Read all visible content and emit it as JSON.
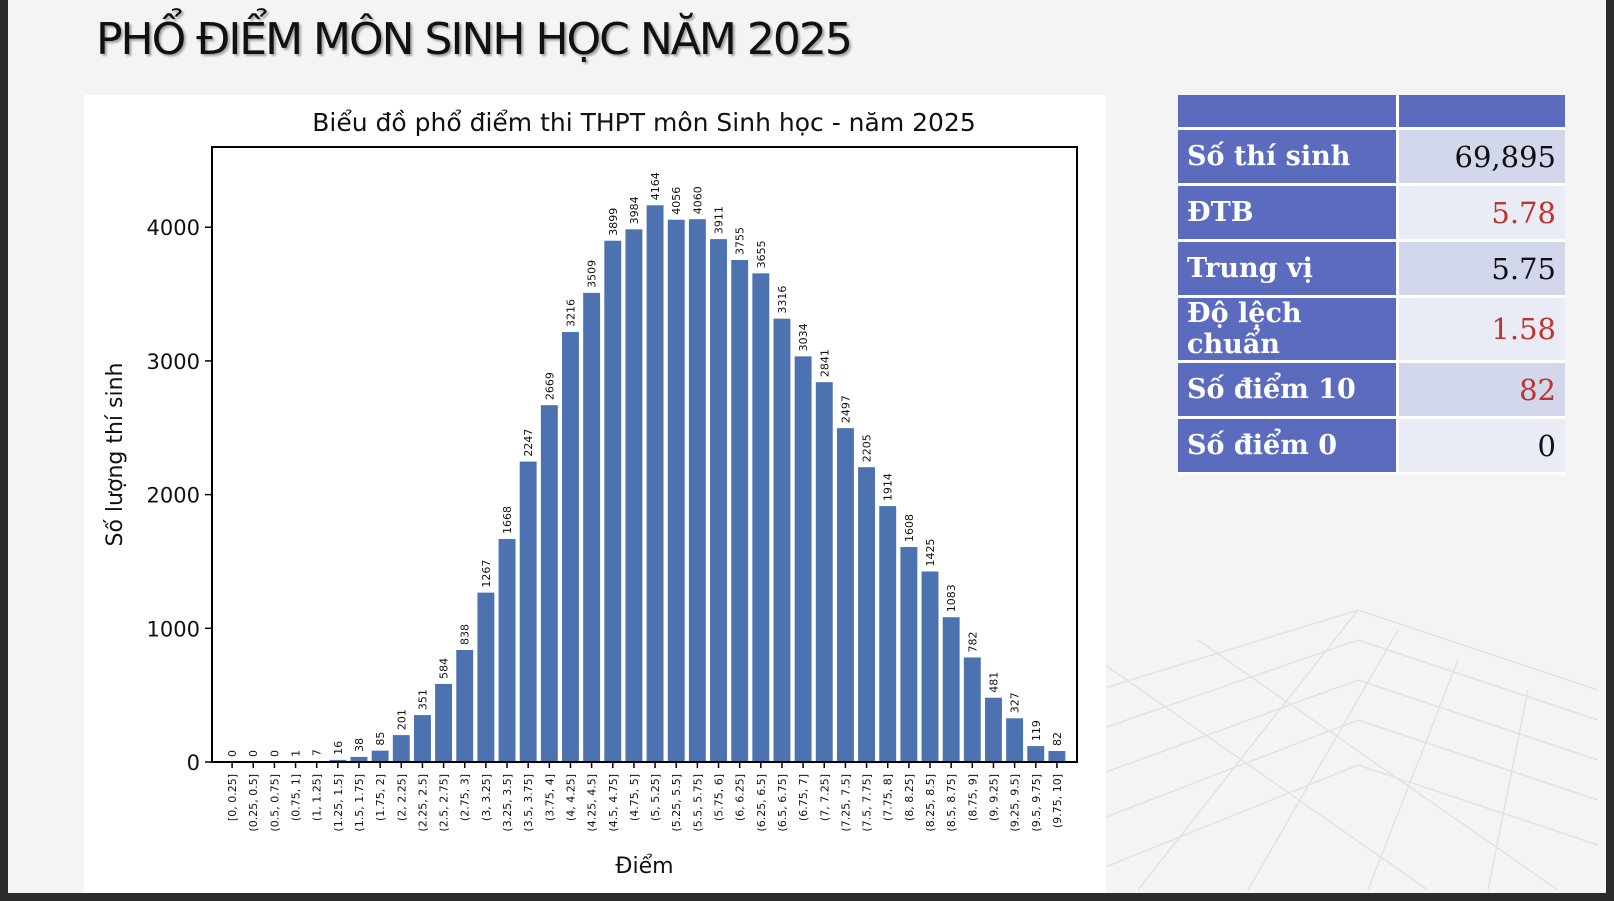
{
  "slide": {
    "title": "PHỔ ĐIỂM MÔN SINH HỌC NĂM 2025"
  },
  "chart_data": {
    "type": "bar",
    "title": "Biểu đồ phổ điểm thi THPT môn Sinh học - năm 2025",
    "xlabel": "Điểm",
    "ylabel": "Số lượng thí sinh",
    "ylim": [
      0,
      4600
    ],
    "yticks": [
      0,
      1000,
      2000,
      3000,
      4000
    ],
    "grid": false,
    "bar_color": "#4c72b0",
    "categories": [
      "[0, 0.25]",
      "(0.25, 0.5]",
      "(0.5, 0.75]",
      "(0.75, 1]",
      "(1, 1.25]",
      "(1.25, 1.5]",
      "(1.5, 1.75]",
      "(1.75, 2]",
      "(2, 2.25]",
      "(2.25, 2.5]",
      "(2.5, 2.75]",
      "(2.75, 3]",
      "(3, 3.25]",
      "(3.25, 3.5]",
      "(3.5, 3.75]",
      "(3.75, 4]",
      "(4, 4.25]",
      "(4.25, 4.5]",
      "(4.5, 4.75]",
      "(4.75, 5]",
      "(5, 5.25]",
      "(5.25, 5.5]",
      "(5.5, 5.75]",
      "(5.75, 6]",
      "(6, 6.25]",
      "(6.25, 6.5]",
      "(6.5, 6.75]",
      "(6.75, 7]",
      "(7, 7.25]",
      "(7.25, 7.5]",
      "(7.5, 7.75]",
      "(7.75, 8]",
      "(8, 8.25]",
      "(8.25, 8.5]",
      "(8.5, 8.75]",
      "(8.75, 9]",
      "(9, 9.25]",
      "(9.25, 9.5]",
      "(9.5, 9.75]",
      "(9.75, 10]"
    ],
    "values": [
      0,
      0,
      0,
      1,
      7,
      16,
      38,
      85,
      201,
      351,
      584,
      838,
      1267,
      1668,
      2247,
      2669,
      3216,
      3509,
      3899,
      3984,
      4164,
      4056,
      4060,
      3911,
      3755,
      3655,
      3316,
      3034,
      2841,
      2497,
      2205,
      1914,
      1608,
      1425,
      1083,
      782,
      481,
      327,
      119,
      82
    ]
  },
  "stats": {
    "rows": [
      {
        "label": "Số thí sinh",
        "value": "69,895",
        "color": "#111111"
      },
      {
        "label": "ĐTB",
        "value": "5.78",
        "color": "#c0312f"
      },
      {
        "label": "Trung vị",
        "value": "5.75",
        "color": "#111111"
      },
      {
        "label": "Độ lệch chuẩn",
        "value": "1.58",
        "color": "#c0312f"
      },
      {
        "label": "Số điểm 10",
        "value": "82",
        "color": "#c0312f"
      },
      {
        "label": "Số điểm 0",
        "value": "0",
        "color": "#111111"
      }
    ]
  }
}
